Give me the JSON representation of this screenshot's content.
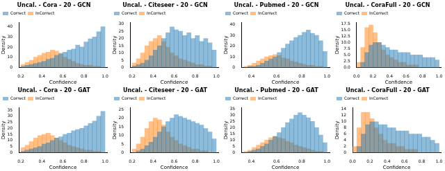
{
  "chart_data": [
    {
      "type": "histogram",
      "title": "Uncal. - Cora - 20 - GCN",
      "x_label": "Confidence",
      "y_label": "Density",
      "bins": [
        0.2,
        0.24,
        0.28,
        0.32,
        0.36,
        0.4,
        0.44,
        0.48,
        0.52,
        0.56,
        0.6,
        0.64,
        0.68,
        0.72,
        0.76,
        0.8,
        0.84,
        0.88,
        0.92,
        0.96,
        1.0
      ],
      "series": [
        {
          "name": "Correct",
          "color": "#1f77b4",
          "values": [
            1,
            2,
            3,
            4,
            5,
            6,
            8,
            9,
            12,
            14,
            15,
            17,
            18,
            22,
            20,
            25,
            28,
            30,
            35,
            40
          ]
        },
        {
          "name": "InCorrect",
          "color": "#ff7f0e",
          "values": [
            3,
            5,
            7,
            10,
            12,
            14,
            15,
            17,
            16,
            13,
            10,
            8,
            6,
            4,
            3,
            2,
            2,
            1,
            1,
            0
          ]
        }
      ],
      "xlim": [
        0.18,
        1.02
      ],
      "ylim": [
        0,
        44
      ],
      "xticks": [
        0.2,
        0.4,
        0.6,
        0.8,
        {
          "value": 1,
          "label": "1.0"
        }
      ],
      "yticks": [
        0,
        10,
        20,
        30,
        40
      ],
      "grid": false,
      "legend": "upper left"
    },
    {
      "type": "histogram",
      "title": "Uncal. - Citeseer - 20 - GCN",
      "x_label": "Confidence",
      "y_label": "Density",
      "bins": [
        0.2,
        0.24,
        0.28,
        0.32,
        0.36,
        0.4,
        0.44,
        0.48,
        0.52,
        0.56,
        0.6,
        0.64,
        0.68,
        0.72,
        0.76,
        0.8,
        0.84,
        0.88,
        0.92,
        0.96,
        1.0
      ],
      "series": [
        {
          "name": "Correct",
          "color": "#1f77b4",
          "values": [
            1,
            2,
            3,
            5,
            8,
            12,
            15,
            20,
            24,
            28,
            26,
            25,
            22,
            24,
            20,
            22,
            18,
            20,
            17,
            12
          ]
        },
        {
          "name": "InCorrect",
          "color": "#ff7f0e",
          "values": [
            3,
            6,
            10,
            15,
            18,
            20,
            22,
            18,
            14,
            10,
            8,
            6,
            5,
            4,
            3,
            2,
            2,
            1,
            1,
            0
          ]
        }
      ],
      "xlim": [
        0.18,
        1.02
      ],
      "ylim": [
        0,
        31
      ],
      "xticks": [
        0.2,
        0.4,
        0.6,
        0.8,
        {
          "value": 1,
          "label": "1.0"
        }
      ],
      "yticks": [
        0,
        5,
        10,
        15,
        20,
        25,
        30
      ],
      "grid": false,
      "legend": "upper left"
    },
    {
      "type": "histogram",
      "title": "Uncal. - Pubmed - 20 - GCN",
      "x_label": "Confidence",
      "y_label": "Density",
      "bins": [
        0.34,
        0.373,
        0.406,
        0.439,
        0.472,
        0.505,
        0.538,
        0.571,
        0.604,
        0.637,
        0.67,
        0.703,
        0.736,
        0.769,
        0.802,
        0.835,
        0.868,
        0.901,
        0.934,
        0.967,
        1.0
      ],
      "series": [
        {
          "name": "Correct",
          "color": "#1f77b4",
          "values": [
            0,
            1,
            1,
            2,
            4,
            6,
            8,
            10,
            14,
            18,
            22,
            25,
            28,
            30,
            33,
            35,
            32,
            30,
            25,
            15
          ]
        },
        {
          "name": "InCorrect",
          "color": "#ff7f0e",
          "values": [
            1,
            2,
            4,
            6,
            8,
            10,
            11,
            12,
            11,
            9,
            8,
            6,
            5,
            4,
            3,
            2,
            2,
            1,
            1,
            0
          ]
        }
      ],
      "xlim": [
        0.32,
        1.02
      ],
      "ylim": [
        0,
        42
      ],
      "xticks": [
        0.4,
        0.6,
        0.8,
        {
          "value": 1,
          "label": "1.0"
        }
      ],
      "yticks": [
        0,
        10,
        20,
        30,
        40
      ],
      "grid": false,
      "legend": "upper left"
    },
    {
      "type": "histogram",
      "title": "Uncal. - CoraFull - 20 - GCN",
      "x_label": "Confidence",
      "y_label": "Density",
      "bins": [
        0,
        0.05,
        0.1,
        0.15,
        0.2,
        0.25,
        0.3,
        0.35,
        0.4,
        0.45,
        0.5,
        0.55,
        0.6,
        0.65,
        0.7,
        0.75,
        0.8,
        0.85,
        0.9,
        0.95,
        1.0
      ],
      "series": [
        {
          "name": "Correct",
          "color": "#1f77b4",
          "values": [
            0,
            2,
            6,
            9,
            10,
            10,
            9,
            8,
            7,
            7,
            6,
            6,
            6,
            5,
            5,
            5,
            4,
            4,
            4,
            3
          ]
        },
        {
          "name": "InCorrect",
          "color": "#ff7f0e",
          "values": [
            2,
            8,
            16,
            17,
            14,
            10,
            7,
            5,
            4,
            3,
            2,
            2,
            1,
            1,
            1,
            0,
            0,
            0,
            0,
            0
          ]
        }
      ],
      "xlim": [
        0,
        1.02
      ],
      "ylim": [
        0,
        18
      ],
      "xticks": [
        {
          "value": 0,
          "label": "0.0"
        },
        0.2,
        0.4,
        0.6,
        0.8,
        {
          "value": 1,
          "label": "1.0"
        }
      ],
      "yticks": [
        {
          "value": 0,
          "label": "0.0"
        },
        2.5,
        {
          "value": 5,
          "label": "5.0"
        },
        7.5,
        {
          "value": 10,
          "label": "10.0"
        },
        12.5,
        {
          "value": 15,
          "label": "15.0"
        },
        17.5
      ],
      "grid": false,
      "legend": "upper left"
    },
    {
      "type": "histogram",
      "title": "Uncal. - Cora - 20 - GAT",
      "x_label": "Confidence",
      "y_label": "Density",
      "bins": [
        0.2,
        0.24,
        0.28,
        0.32,
        0.36,
        0.4,
        0.44,
        0.48,
        0.52,
        0.56,
        0.6,
        0.64,
        0.68,
        0.72,
        0.76,
        0.8,
        0.84,
        0.88,
        0.92,
        0.96,
        1.0
      ],
      "series": [
        {
          "name": "Correct",
          "color": "#1f77b4",
          "values": [
            1,
            2,
            3,
            4,
            5,
            7,
            8,
            10,
            12,
            13,
            15,
            16,
            18,
            19,
            20,
            22,
            24,
            26,
            30,
            34
          ]
        },
        {
          "name": "InCorrect",
          "color": "#ff7f0e",
          "values": [
            4,
            6,
            9,
            12,
            14,
            15,
            16,
            14,
            12,
            10,
            8,
            6,
            5,
            4,
            3,
            2,
            2,
            1,
            1,
            0
          ]
        }
      ],
      "xlim": [
        0.18,
        1.02
      ],
      "ylim": [
        0,
        37
      ],
      "xticks": [
        0.2,
        0.4,
        0.6,
        0.8,
        {
          "value": 1,
          "label": "1.0"
        }
      ],
      "yticks": [
        0,
        5,
        10,
        15,
        20,
        25,
        30,
        35
      ],
      "grid": false,
      "legend": "upper left"
    },
    {
      "type": "histogram",
      "title": "Uncal. - Citeseer - 20 - GAT",
      "x_label": "Confidence",
      "y_label": "Density",
      "bins": [
        0.2,
        0.24,
        0.28,
        0.32,
        0.36,
        0.4,
        0.44,
        0.48,
        0.52,
        0.56,
        0.6,
        0.64,
        0.68,
        0.72,
        0.76,
        0.8,
        0.84,
        0.88,
        0.92,
        0.96,
        1.0
      ],
      "series": [
        {
          "name": "Correct",
          "color": "#1f77b4",
          "values": [
            0,
            1,
            2,
            4,
            6,
            9,
            12,
            15,
            18,
            20,
            22,
            21,
            20,
            19,
            18,
            17,
            16,
            14,
            12,
            8
          ]
        },
        {
          "name": "InCorrect",
          "color": "#ff7f0e",
          "values": [
            2,
            5,
            9,
            14,
            18,
            20,
            19,
            16,
            12,
            9,
            7,
            5,
            4,
            3,
            2,
            2,
            1,
            1,
            0,
            0
          ]
        }
      ],
      "xlim": [
        0.18,
        1.02
      ],
      "ylim": [
        0,
        26
      ],
      "xticks": [
        0.2,
        0.4,
        0.6,
        0.8,
        {
          "value": 1,
          "label": "1.0"
        }
      ],
      "yticks": [
        0,
        5,
        10,
        15,
        20,
        25
      ],
      "grid": false,
      "legend": "upper left"
    },
    {
      "type": "histogram",
      "title": "Uncal. - Pubmed - 20 - GAT",
      "x_label": "Confidence",
      "y_label": "Density",
      "bins": [
        0.34,
        0.373,
        0.406,
        0.439,
        0.472,
        0.505,
        0.538,
        0.571,
        0.604,
        0.637,
        0.67,
        0.703,
        0.736,
        0.769,
        0.802,
        0.835,
        0.868,
        0.901,
        0.934,
        0.967,
        1.0
      ],
      "series": [
        {
          "name": "Correct",
          "color": "#1f77b4",
          "values": [
            0,
            1,
            2,
            3,
            5,
            7,
            10,
            13,
            16,
            20,
            24,
            27,
            30,
            32,
            30,
            28,
            25,
            20,
            14,
            8
          ]
        },
        {
          "name": "InCorrect",
          "color": "#ff7f0e",
          "values": [
            1,
            2,
            4,
            6,
            8,
            10,
            12,
            13,
            12,
            11,
            9,
            8,
            6,
            5,
            4,
            3,
            2,
            1,
            1,
            0
          ]
        }
      ],
      "xlim": [
        0.32,
        1.02
      ],
      "ylim": [
        0,
        36
      ],
      "xticks": [
        0.4,
        0.6,
        0.8,
        {
          "value": 1,
          "label": "1.0"
        }
      ],
      "yticks": [
        0,
        5,
        10,
        15,
        20,
        25,
        30,
        35
      ],
      "grid": false,
      "legend": "upper left"
    },
    {
      "type": "histogram",
      "title": "Uncal. - CoraFull - 20 - GAT",
      "x_label": "Confidence",
      "y_label": "Density",
      "bins": [
        0,
        0.05,
        0.1,
        0.15,
        0.2,
        0.25,
        0.3,
        0.35,
        0.4,
        0.45,
        0.5,
        0.55,
        0.6,
        0.65,
        0.7,
        0.75,
        0.8,
        0.85,
        0.9,
        0.95,
        1.0
      ],
      "series": [
        {
          "name": "Correct",
          "color": "#1f77b4",
          "values": [
            0,
            2,
            6,
            9,
            10,
            10,
            9,
            9,
            8,
            8,
            7,
            7,
            7,
            6,
            6,
            6,
            5,
            5,
            4,
            3
          ]
        },
        {
          "name": "InCorrect",
          "color": "#ff7f0e",
          "values": [
            2,
            8,
            13,
            13,
            11,
            8,
            6,
            4,
            3,
            3,
            2,
            2,
            1,
            1,
            1,
            0,
            0,
            0,
            0,
            0
          ]
        }
      ],
      "xlim": [
        0,
        1.02
      ],
      "ylim": [
        0,
        14.5
      ],
      "xticks": [
        {
          "value": 0,
          "label": "0.0"
        },
        0.2,
        0.4,
        0.6,
        0.8,
        {
          "value": 1,
          "label": "1.0"
        }
      ],
      "yticks": [
        0,
        2,
        4,
        6,
        8,
        10,
        12,
        14
      ],
      "grid": false,
      "legend": "upper left"
    }
  ]
}
